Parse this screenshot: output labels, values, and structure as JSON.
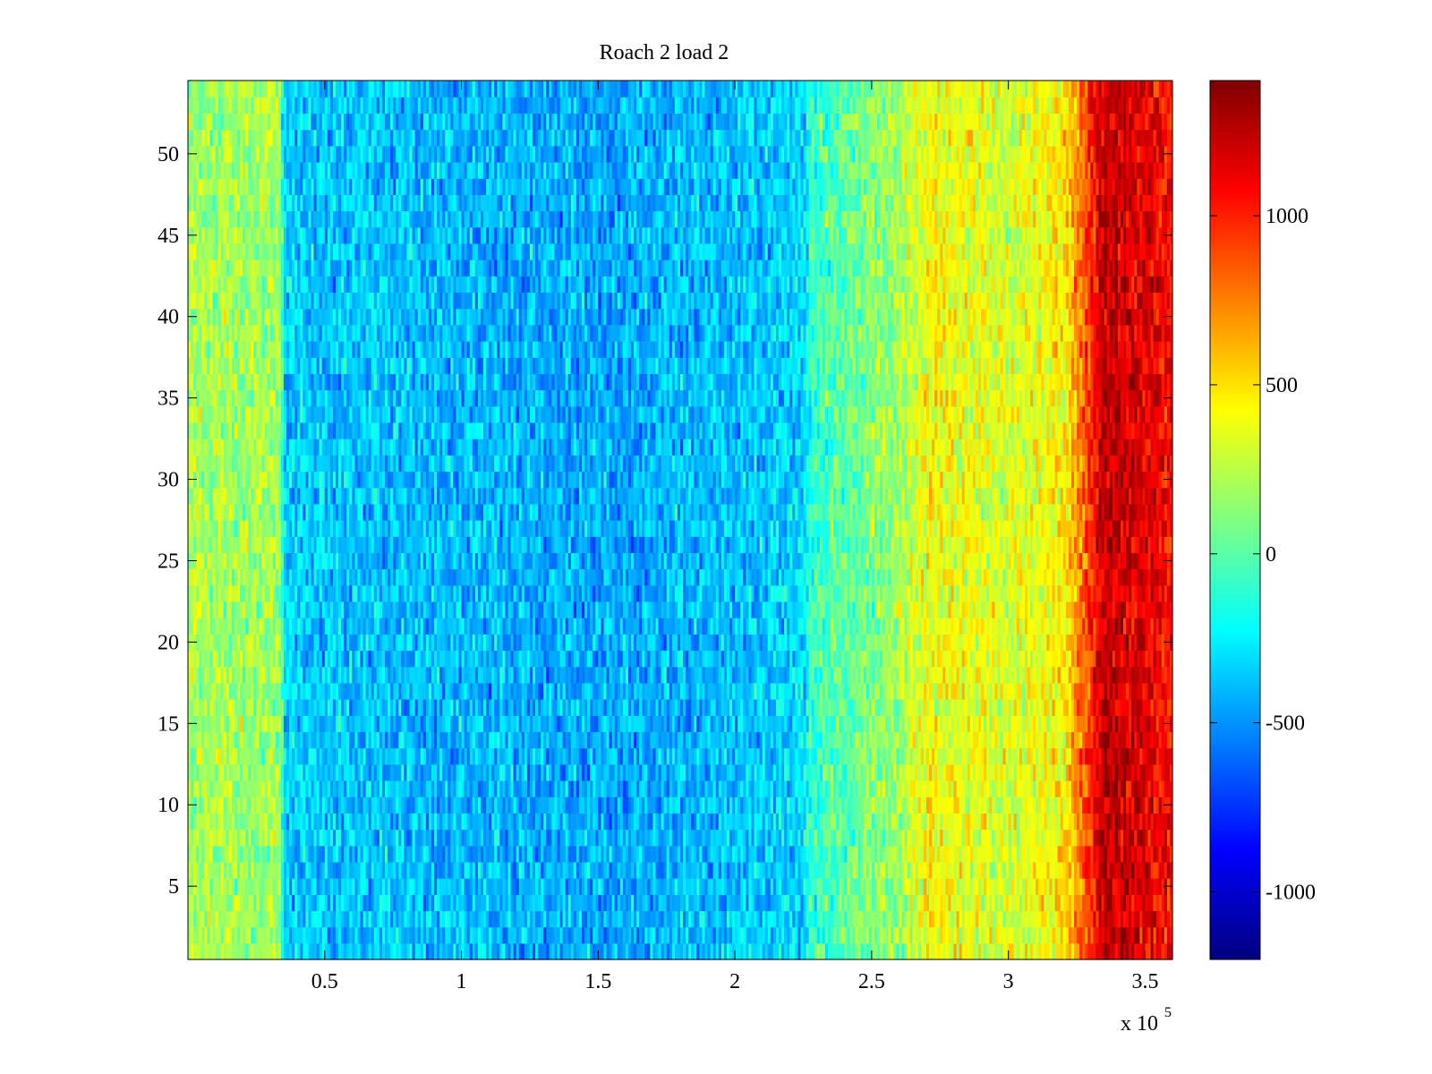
{
  "chart_data": {
    "type": "heatmap",
    "title": "Roach 2 load 2",
    "xlabel": "",
    "ylabel": "",
    "x_multiplier_label": "x 10",
    "x_multiplier_exponent": "5",
    "xlim": [
      0,
      360000
    ],
    "ylim": [
      0.5,
      54.5
    ],
    "x_ticks": [
      50000,
      100000,
      150000,
      200000,
      250000,
      300000,
      350000
    ],
    "x_tick_labels": [
      "0.5",
      "1",
      "1.5",
      "2",
      "2.5",
      "3",
      "3.5"
    ],
    "y_ticks": [
      5,
      10,
      15,
      20,
      25,
      30,
      35,
      40,
      45,
      50
    ],
    "y_tick_labels": [
      "5",
      "10",
      "15",
      "20",
      "25",
      "30",
      "35",
      "40",
      "45",
      "50"
    ],
    "rows": 54,
    "colorbar": {
      "colormap": "jet",
      "range": [
        -1200,
        1400
      ],
      "ticks": [
        -1000,
        -500,
        0,
        500,
        1000
      ],
      "tick_labels": [
        "-1000",
        "-500",
        "0",
        "500",
        "1000"
      ]
    },
    "column_profile": {
      "description_x": [
        0,
        34000,
        35000,
        100000,
        150000,
        200000,
        225000,
        228000,
        260000,
        270000,
        300000,
        320000,
        328000,
        335000,
        350000,
        360000
      ],
      "mean_value": [
        200,
        180,
        -350,
        -400,
        -450,
        -380,
        -320,
        -80,
        180,
        420,
        320,
        450,
        850,
        1250,
        1150,
        1050
      ],
      "noise_amplitude": 180
    }
  }
}
